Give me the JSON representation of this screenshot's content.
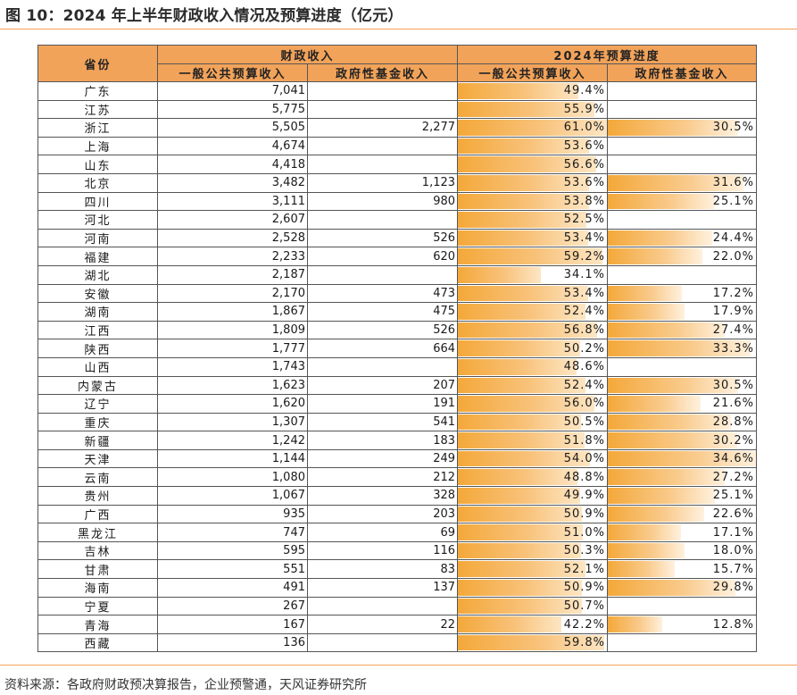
{
  "title": "图 10：2024 年上半年财政收入情况及预算进度（亿元）",
  "header": {
    "province": "省份",
    "group_revenue": "财政收入",
    "group_progress": "2024年预算进度",
    "general_revenue": "一般公共预算收入",
    "fund_revenue": "政府性基金收入",
    "general_progress": "一般公共预算收入",
    "fund_progress": "政府性基金收入"
  },
  "rows": [
    {
      "name": "广东",
      "general": "7,041",
      "fund": "",
      "gp": "49.4%",
      "gp_val": 49.4,
      "fp": "",
      "fp_val": null
    },
    {
      "name": "江苏",
      "general": "5,775",
      "fund": "",
      "gp": "55.9%",
      "gp_val": 55.9,
      "fp": "",
      "fp_val": null
    },
    {
      "name": "浙江",
      "general": "5,505",
      "fund": "2,277",
      "gp": "61.0%",
      "gp_val": 61.0,
      "fp": "30.5%",
      "fp_val": 30.5
    },
    {
      "name": "上海",
      "general": "4,674",
      "fund": "",
      "gp": "53.6%",
      "gp_val": 53.6,
      "fp": "",
      "fp_val": null
    },
    {
      "name": "山东",
      "general": "4,418",
      "fund": "",
      "gp": "56.6%",
      "gp_val": 56.6,
      "fp": "",
      "fp_val": null
    },
    {
      "name": "北京",
      "general": "3,482",
      "fund": "1,123",
      "gp": "53.6%",
      "gp_val": 53.6,
      "fp": "31.6%",
      "fp_val": 31.6
    },
    {
      "name": "四川",
      "general": "3,111",
      "fund": "980",
      "gp": "53.8%",
      "gp_val": 53.8,
      "fp": "25.1%",
      "fp_val": 25.1
    },
    {
      "name": "河北",
      "general": "2,607",
      "fund": "",
      "gp": "52.5%",
      "gp_val": 52.5,
      "fp": "",
      "fp_val": null
    },
    {
      "name": "河南",
      "general": "2,528",
      "fund": "526",
      "gp": "53.4%",
      "gp_val": 53.4,
      "fp": "24.4%",
      "fp_val": 24.4
    },
    {
      "name": "福建",
      "general": "2,233",
      "fund": "620",
      "gp": "59.2%",
      "gp_val": 59.2,
      "fp": "22.0%",
      "fp_val": 22.0
    },
    {
      "name": "湖北",
      "general": "2,187",
      "fund": "",
      "gp": "34.1%",
      "gp_val": 34.1,
      "fp": "",
      "fp_val": null
    },
    {
      "name": "安徽",
      "general": "2,170",
      "fund": "473",
      "gp": "53.4%",
      "gp_val": 53.4,
      "fp": "17.2%",
      "fp_val": 17.2
    },
    {
      "name": "湖南",
      "general": "1,867",
      "fund": "475",
      "gp": "52.4%",
      "gp_val": 52.4,
      "fp": "17.9%",
      "fp_val": 17.9
    },
    {
      "name": "江西",
      "general": "1,809",
      "fund": "526",
      "gp": "56.8%",
      "gp_val": 56.8,
      "fp": "27.4%",
      "fp_val": 27.4
    },
    {
      "name": "陕西",
      "general": "1,777",
      "fund": "664",
      "gp": "50.2%",
      "gp_val": 50.2,
      "fp": "33.3%",
      "fp_val": 33.3
    },
    {
      "name": "山西",
      "general": "1,743",
      "fund": "",
      "gp": "48.6%",
      "gp_val": 48.6,
      "fp": "",
      "fp_val": null
    },
    {
      "name": "内蒙古",
      "general": "1,623",
      "fund": "207",
      "gp": "52.4%",
      "gp_val": 52.4,
      "fp": "30.5%",
      "fp_val": 30.5
    },
    {
      "name": "辽宁",
      "general": "1,620",
      "fund": "191",
      "gp": "56.0%",
      "gp_val": 56.0,
      "fp": "21.6%",
      "fp_val": 21.6
    },
    {
      "name": "重庆",
      "general": "1,307",
      "fund": "541",
      "gp": "50.5%",
      "gp_val": 50.5,
      "fp": "28.8%",
      "fp_val": 28.8
    },
    {
      "name": "新疆",
      "general": "1,242",
      "fund": "183",
      "gp": "51.8%",
      "gp_val": 51.8,
      "fp": "30.2%",
      "fp_val": 30.2
    },
    {
      "name": "天津",
      "general": "1,144",
      "fund": "249",
      "gp": "54.0%",
      "gp_val": 54.0,
      "fp": "34.6%",
      "fp_val": 34.6
    },
    {
      "name": "云南",
      "general": "1,080",
      "fund": "212",
      "gp": "48.8%",
      "gp_val": 48.8,
      "fp": "27.2%",
      "fp_val": 27.2
    },
    {
      "name": "贵州",
      "general": "1,067",
      "fund": "328",
      "gp": "49.9%",
      "gp_val": 49.9,
      "fp": "25.1%",
      "fp_val": 25.1
    },
    {
      "name": "广西",
      "general": "935",
      "fund": "203",
      "gp": "50.9%",
      "gp_val": 50.9,
      "fp": "22.6%",
      "fp_val": 22.6
    },
    {
      "name": "黑龙江",
      "general": "747",
      "fund": "69",
      "gp": "51.0%",
      "gp_val": 51.0,
      "fp": "17.1%",
      "fp_val": 17.1
    },
    {
      "name": "吉林",
      "general": "595",
      "fund": "116",
      "gp": "50.3%",
      "gp_val": 50.3,
      "fp": "18.0%",
      "fp_val": 18.0
    },
    {
      "name": "甘肃",
      "general": "551",
      "fund": "83",
      "gp": "52.1%",
      "gp_val": 52.1,
      "fp": "15.7%",
      "fp_val": 15.7
    },
    {
      "name": "海南",
      "general": "491",
      "fund": "137",
      "gp": "50.9%",
      "gp_val": 50.9,
      "fp": "29.8%",
      "fp_val": 29.8
    },
    {
      "name": "宁夏",
      "general": "267",
      "fund": "",
      "gp": "50.7%",
      "gp_val": 50.7,
      "fp": "",
      "fp_val": null
    },
    {
      "name": "青海",
      "general": "167",
      "fund": "22",
      "gp": "42.2%",
      "gp_val": 42.2,
      "fp": "12.8%",
      "fp_val": 12.8
    },
    {
      "name": "西藏",
      "general": "136",
      "fund": "",
      "gp": "59.8%",
      "gp_val": 59.8,
      "fp": "",
      "fp_val": null
    }
  ],
  "databar_scale": {
    "general_max": 61.0,
    "fund_max": 34.6
  },
  "colors": {
    "accent": "#f2a35a",
    "bar": "#f4a83a",
    "rule": "#f2a35a"
  },
  "source": "资料来源：各政府财政预决算报告，企业预警通，天风证券研究所"
}
